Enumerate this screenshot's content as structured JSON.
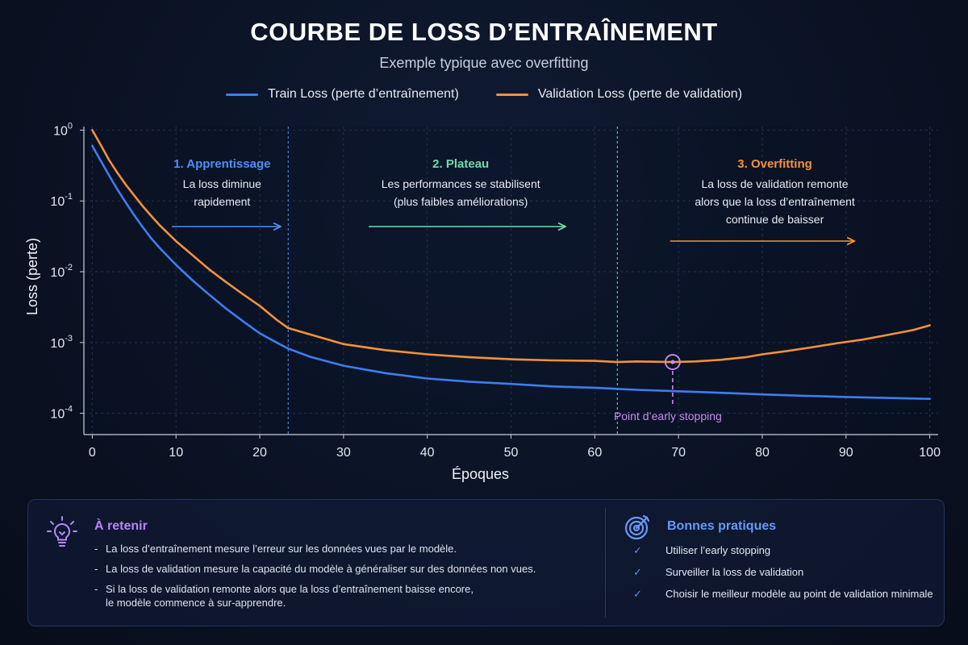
{
  "title": "COURBE DE LOSS D’ENTRAÎNEMENT",
  "subtitle": "Exemple typique avec overfitting",
  "colors": {
    "train": "#3d7df2",
    "validation": "#f5913a",
    "learning": "#4f8ff7",
    "plateau": "#6fdca8",
    "overfit": "#f5913a",
    "early_stop": "#c98bf0",
    "retain": "#b487f5",
    "practices": "#6a98f7"
  },
  "chart_data": {
    "type": "line",
    "title": "COURBE DE LOSS D’ENTRAÎNEMENT",
    "subtitle": "Exemple typique avec overfitting",
    "xlabel": "Époques",
    "ylabel": "Loss (perte)",
    "xlim": [
      -1,
      101
    ],
    "ylim_log10": [
      -4.3,
      0.05
    ],
    "yscale": "log",
    "grid": true,
    "legend_placement": "top-center",
    "x_ticks": [
      0,
      10,
      20,
      30,
      40,
      50,
      60,
      70,
      80,
      90,
      100
    ],
    "y_ticks": [
      {
        "exp": 0,
        "base": "10",
        "sup": "0"
      },
      {
        "exp": -1,
        "base": "10",
        "sup": "-1"
      },
      {
        "exp": -2,
        "base": "10",
        "sup": "-2"
      },
      {
        "exp": -3,
        "base": "10",
        "sup": "-3"
      },
      {
        "exp": -4,
        "base": "10",
        "sup": "-4"
      }
    ],
    "phase_boundaries": [
      {
        "x": 23.4,
        "color": "#4f8ff7"
      },
      {
        "x": 62.7,
        "color": "#6fdca8"
      }
    ],
    "series": [
      {
        "name": "Train Loss (perte d’entraînement)",
        "x": [
          0,
          1,
          2,
          3,
          4,
          5,
          6,
          7,
          8,
          10,
          12,
          14,
          16,
          18,
          20,
          22,
          23.4,
          26,
          30,
          35,
          40,
          45,
          50,
          55,
          60,
          65,
          70,
          75,
          80,
          85,
          90,
          95,
          100
        ],
        "y": [
          0.6,
          0.37,
          0.23,
          0.145,
          0.095,
          0.063,
          0.043,
          0.03,
          0.022,
          0.0125,
          0.0075,
          0.0047,
          0.003,
          0.002,
          0.00135,
          0.001,
          0.00082,
          0.00063,
          0.00047,
          0.00037,
          0.00031,
          0.00028,
          0.00026,
          0.00024,
          0.00023,
          0.000215,
          0.000205,
          0.000195,
          0.000185,
          0.000177,
          0.00017,
          0.000165,
          0.00016
        ]
      },
      {
        "name": "Validation Loss (perte de validation)",
        "x": [
          0,
          1,
          2,
          3,
          4,
          5,
          6,
          7,
          8,
          10,
          12,
          14,
          16,
          18,
          20,
          22,
          23.4,
          26,
          30,
          35,
          40,
          45,
          50,
          55,
          60,
          62.7,
          65,
          69.3,
          72,
          75,
          78,
          80,
          83,
          86,
          89,
          92,
          95,
          98,
          100
        ],
        "y": [
          1.0,
          0.62,
          0.38,
          0.25,
          0.17,
          0.12,
          0.085,
          0.062,
          0.046,
          0.027,
          0.017,
          0.0107,
          0.0071,
          0.0048,
          0.0033,
          0.0021,
          0.0016,
          0.0013,
          0.00095,
          0.00078,
          0.00068,
          0.00062,
          0.00058,
          0.00056,
          0.00055,
          0.00053,
          0.00054,
          0.00053,
          0.00054,
          0.00057,
          0.00062,
          0.00068,
          0.00076,
          0.00086,
          0.00098,
          0.0011,
          0.00128,
          0.0015,
          0.00175
        ]
      }
    ],
    "annotations": [
      {
        "title": "1. Apprentissage",
        "lines": [
          "La loss diminue",
          "rapidement"
        ],
        "color": "#4f8ff7",
        "x": 15.5,
        "arrow_from": 9.5,
        "arrow_to": 22.5
      },
      {
        "title": "2. Plateau",
        "lines": [
          "Les performances se stabilisent",
          "(plus faibles améliorations)"
        ],
        "color": "#6fdca8",
        "x": 44,
        "arrow_from": 33,
        "arrow_to": 56.5
      },
      {
        "title": "3. Overfitting",
        "lines": [
          "La loss de validation remonte",
          "alors que la loss d’entraînement",
          "continue de baisser"
        ],
        "color": "#f5913a",
        "x": 81.5,
        "arrow_from": 69,
        "arrow_to": 91
      }
    ],
    "early_stopping": {
      "x": 69.3,
      "y": 0.00053,
      "label": "Point d’early stopping"
    }
  },
  "retain": {
    "heading": "À retenir",
    "icon": "lightbulb-icon",
    "items": [
      "La loss d’entraînement mesure l’erreur sur les données vues par le modèle.",
      "La loss de validation mesure la capacité du modèle à généraliser sur des données non vues.",
      "Si la loss de validation remonte alors que  la loss d’entraînement baisse encore,\nle modèle commence à sur-apprendre."
    ]
  },
  "practices": {
    "heading": "Bonnes pratiques",
    "icon": "target-icon",
    "check_icon": "check-icon",
    "check_glyph": "✓",
    "items": [
      "Utiliser l’early stopping",
      "Surveiller la loss de validation",
      "Choisir le meilleur modèle au point de validation minimale"
    ]
  }
}
